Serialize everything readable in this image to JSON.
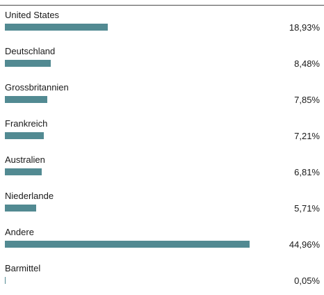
{
  "chart_data": {
    "type": "bar",
    "orientation": "horizontal",
    "categories": [
      "United States",
      "Deutschland",
      "Grossbritannien",
      "Frankreich",
      "Australien",
      "Niederlande",
      "Andere",
      "Barmittel"
    ],
    "values": [
      18.93,
      8.48,
      7.85,
      7.21,
      6.81,
      5.71,
      44.96,
      0.05
    ],
    "value_labels": [
      "18,93%",
      "8,48%",
      "7,85%",
      "7,21%",
      "6,81%",
      "5,71%",
      "44,96%",
      "0,05%"
    ],
    "bar_color": "#528a92",
    "grid": false,
    "legend": "none"
  }
}
